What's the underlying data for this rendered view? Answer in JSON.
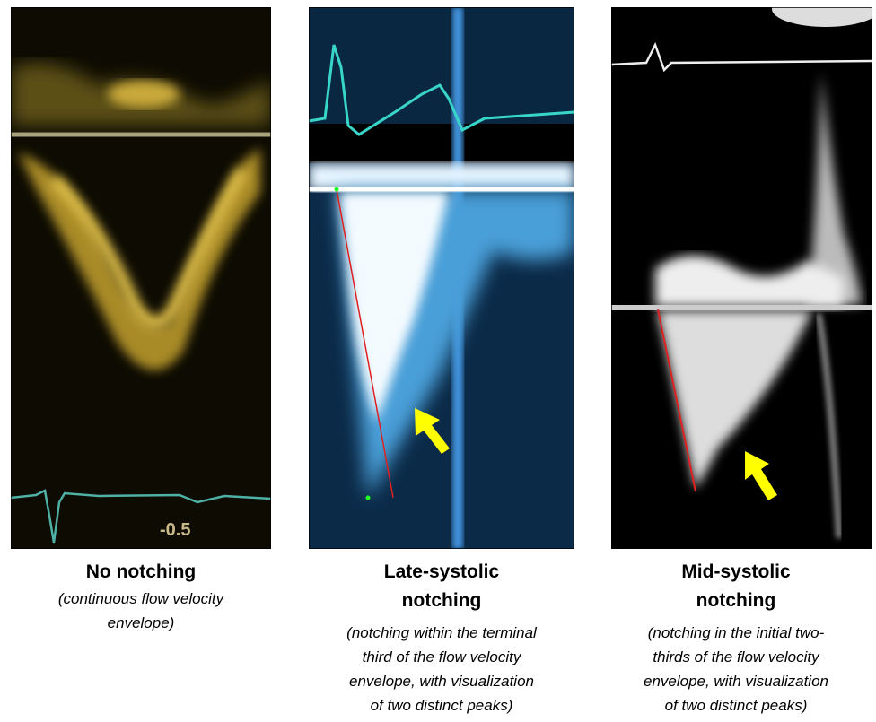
{
  "panels": [
    {
      "title": [
        "No notching"
      ],
      "description": [
        "(continuous flow velocity",
        "envelope)"
      ],
      "image_label": "-0.5"
    },
    {
      "title": [
        "Late-systolic",
        "notching"
      ],
      "description": [
        "(notching within the terminal",
        "third of the flow velocity",
        "envelope, with visualization",
        "of two distinct peaks)"
      ]
    },
    {
      "title": [
        "Mid-systolic",
        "notching"
      ],
      "description": [
        "(notching in the initial two-",
        "thirds of the flow velocity",
        "envelope, with visualization",
        "of two distinct peaks)"
      ]
    }
  ]
}
